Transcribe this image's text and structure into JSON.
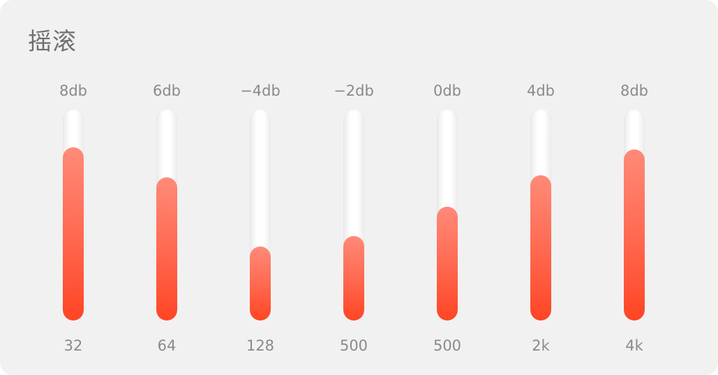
{
  "title": "摇滚",
  "accent_color": "#ff4a2a",
  "bands": [
    {
      "db_label": "8db",
      "freq": "32",
      "level": 0.82
    },
    {
      "db_label": "6db",
      "freq": "64",
      "level": 0.68
    },
    {
      "db_label": "−4db",
      "freq": "128",
      "level": 0.35
    },
    {
      "db_label": "−2db",
      "freq": "500",
      "level": 0.4
    },
    {
      "db_label": "0db",
      "freq": "500",
      "level": 0.54
    },
    {
      "db_label": "4db",
      "freq": "2k",
      "level": 0.69
    },
    {
      "db_label": "8db",
      "freq": "4k",
      "level": 0.81
    }
  ]
}
